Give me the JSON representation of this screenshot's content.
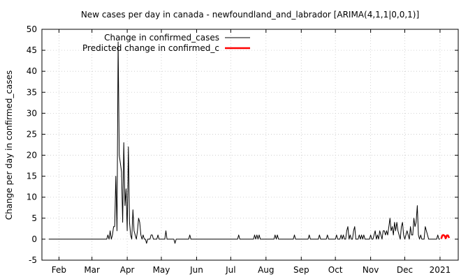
{
  "chart_data": {
    "type": "line",
    "title": "New cases per day in canada - newfoundland_and_labrador [ARIMA(4,1,1|0,0,1)]",
    "xlabel": "",
    "ylabel": "Change per day in confirmed_cases",
    "ylim": [
      -5,
      50
    ],
    "yticks": [
      -5,
      0,
      5,
      10,
      15,
      20,
      25,
      30,
      35,
      40,
      45,
      50
    ],
    "xlim": [
      "2020-01-17",
      "2021-01-17"
    ],
    "xticks": [
      {
        "label": "Feb",
        "date": "2020-02-01"
      },
      {
        "label": "Mar",
        "date": "2020-03-01"
      },
      {
        "label": "Apr",
        "date": "2020-04-01"
      },
      {
        "label": "May",
        "date": "2020-05-01"
      },
      {
        "label": "Jun",
        "date": "2020-06-01"
      },
      {
        "label": "Jul",
        "date": "2020-07-01"
      },
      {
        "label": "Aug",
        "date": "2020-08-01"
      },
      {
        "label": "Sep",
        "date": "2020-09-01"
      },
      {
        "label": "Oct",
        "date": "2020-10-01"
      },
      {
        "label": "Nov",
        "date": "2020-11-01"
      },
      {
        "label": "Dec",
        "date": "2020-12-01"
      },
      {
        "label": "2021",
        "date": "2021-01-01"
      }
    ],
    "grid": true,
    "legend_position": "top-left",
    "series": [
      {
        "name": "Change in confirmed_cases",
        "color": "#000000",
        "points": [
          [
            "2020-01-23",
            0
          ],
          [
            "2020-03-14",
            0
          ],
          [
            "2020-03-15",
            1
          ],
          [
            "2020-03-16",
            0
          ],
          [
            "2020-03-17",
            2
          ],
          [
            "2020-03-18",
            0
          ],
          [
            "2020-03-19",
            1
          ],
          [
            "2020-03-20",
            3
          ],
          [
            "2020-03-21",
            3
          ],
          [
            "2020-03-22",
            15
          ],
          [
            "2020-03-23",
            2
          ],
          [
            "2020-03-24",
            47
          ],
          [
            "2020-03-25",
            20
          ],
          [
            "2020-03-26",
            18
          ],
          [
            "2020-03-27",
            16
          ],
          [
            "2020-03-28",
            4
          ],
          [
            "2020-03-29",
            23
          ],
          [
            "2020-03-30",
            8
          ],
          [
            "2020-03-31",
            12
          ],
          [
            "2020-04-01",
            2
          ],
          [
            "2020-04-02",
            22
          ],
          [
            "2020-04-03",
            4
          ],
          [
            "2020-04-04",
            1
          ],
          [
            "2020-04-05",
            0
          ],
          [
            "2020-04-06",
            7
          ],
          [
            "2020-04-07",
            2
          ],
          [
            "2020-04-08",
            1
          ],
          [
            "2020-04-09",
            0
          ],
          [
            "2020-04-10",
            2
          ],
          [
            "2020-04-11",
            5
          ],
          [
            "2020-04-12",
            4
          ],
          [
            "2020-04-13",
            1
          ],
          [
            "2020-04-14",
            0
          ],
          [
            "2020-04-15",
            1
          ],
          [
            "2020-04-16",
            0
          ],
          [
            "2020-04-17",
            0
          ],
          [
            "2020-04-18",
            -1
          ],
          [
            "2020-04-19",
            0
          ],
          [
            "2020-04-20",
            0
          ],
          [
            "2020-04-21",
            0
          ],
          [
            "2020-04-22",
            1
          ],
          [
            "2020-04-23",
            1
          ],
          [
            "2020-04-24",
            0
          ],
          [
            "2020-04-25",
            0
          ],
          [
            "2020-04-26",
            0
          ],
          [
            "2020-04-27",
            0
          ],
          [
            "2020-04-28",
            1
          ],
          [
            "2020-04-29",
            0
          ],
          [
            "2020-04-30",
            0
          ],
          [
            "2020-05-01",
            0
          ],
          [
            "2020-05-02",
            0
          ],
          [
            "2020-05-03",
            0
          ],
          [
            "2020-05-04",
            0
          ],
          [
            "2020-05-05",
            2
          ],
          [
            "2020-05-06",
            0
          ],
          [
            "2020-05-12",
            0
          ],
          [
            "2020-05-13",
            -1
          ],
          [
            "2020-05-14",
            0
          ],
          [
            "2020-05-25",
            0
          ],
          [
            "2020-05-26",
            1
          ],
          [
            "2020-05-27",
            0
          ],
          [
            "2020-07-07",
            0
          ],
          [
            "2020-07-08",
            1
          ],
          [
            "2020-07-09",
            0
          ],
          [
            "2020-07-21",
            0
          ],
          [
            "2020-07-22",
            1
          ],
          [
            "2020-07-23",
            0
          ],
          [
            "2020-07-24",
            1
          ],
          [
            "2020-07-25",
            0
          ],
          [
            "2020-07-26",
            1
          ],
          [
            "2020-07-27",
            0
          ],
          [
            "2020-08-08",
            0
          ],
          [
            "2020-08-09",
            1
          ],
          [
            "2020-08-10",
            0
          ],
          [
            "2020-08-11",
            1
          ],
          [
            "2020-08-12",
            0
          ],
          [
            "2020-08-25",
            0
          ],
          [
            "2020-08-26",
            1
          ],
          [
            "2020-08-27",
            0
          ],
          [
            "2020-09-07",
            0
          ],
          [
            "2020-09-08",
            1
          ],
          [
            "2020-09-09",
            0
          ],
          [
            "2020-09-16",
            0
          ],
          [
            "2020-09-17",
            1
          ],
          [
            "2020-09-18",
            0
          ],
          [
            "2020-09-23",
            0
          ],
          [
            "2020-09-24",
            1
          ],
          [
            "2020-09-25",
            0
          ],
          [
            "2020-10-01",
            0
          ],
          [
            "2020-10-02",
            1
          ],
          [
            "2020-10-03",
            0
          ],
          [
            "2020-10-05",
            0
          ],
          [
            "2020-10-06",
            1
          ],
          [
            "2020-10-07",
            0
          ],
          [
            "2020-10-08",
            1
          ],
          [
            "2020-10-09",
            0
          ],
          [
            "2020-10-10",
            0
          ],
          [
            "2020-10-11",
            2
          ],
          [
            "2020-10-12",
            3
          ],
          [
            "2020-10-13",
            0
          ],
          [
            "2020-10-14",
            1
          ],
          [
            "2020-10-15",
            0
          ],
          [
            "2020-10-16",
            0
          ],
          [
            "2020-10-17",
            2
          ],
          [
            "2020-10-18",
            3
          ],
          [
            "2020-10-19",
            0
          ],
          [
            "2020-10-20",
            0
          ],
          [
            "2020-10-21",
            0
          ],
          [
            "2020-10-22",
            1
          ],
          [
            "2020-10-23",
            0
          ],
          [
            "2020-10-24",
            1
          ],
          [
            "2020-10-25",
            0
          ],
          [
            "2020-10-26",
            1
          ],
          [
            "2020-10-27",
            0
          ],
          [
            "2020-10-28",
            0
          ],
          [
            "2020-10-29",
            0
          ],
          [
            "2020-10-30",
            0
          ],
          [
            "2020-10-31",
            0
          ],
          [
            "2020-11-01",
            1
          ],
          [
            "2020-11-02",
            0
          ],
          [
            "2020-11-03",
            0
          ],
          [
            "2020-11-04",
            1
          ],
          [
            "2020-11-05",
            2
          ],
          [
            "2020-11-06",
            0
          ],
          [
            "2020-11-07",
            1
          ],
          [
            "2020-11-08",
            0
          ],
          [
            "2020-11-09",
            2
          ],
          [
            "2020-11-10",
            1
          ],
          [
            "2020-11-11",
            0
          ],
          [
            "2020-11-12",
            2
          ],
          [
            "2020-11-13",
            2
          ],
          [
            "2020-11-14",
            1
          ],
          [
            "2020-11-15",
            2
          ],
          [
            "2020-11-16",
            1
          ],
          [
            "2020-11-17",
            3
          ],
          [
            "2020-11-18",
            5
          ],
          [
            "2020-11-19",
            2
          ],
          [
            "2020-11-20",
            3
          ],
          [
            "2020-11-21",
            1
          ],
          [
            "2020-11-22",
            4
          ],
          [
            "2020-11-23",
            2
          ],
          [
            "2020-11-24",
            4
          ],
          [
            "2020-11-25",
            2
          ],
          [
            "2020-11-26",
            1
          ],
          [
            "2020-11-27",
            0
          ],
          [
            "2020-11-28",
            3
          ],
          [
            "2020-11-29",
            4
          ],
          [
            "2020-11-30",
            1
          ],
          [
            "2020-12-01",
            0
          ],
          [
            "2020-12-02",
            1
          ],
          [
            "2020-12-03",
            2
          ],
          [
            "2020-12-04",
            1
          ],
          [
            "2020-12-05",
            0
          ],
          [
            "2020-12-06",
            3
          ],
          [
            "2020-12-07",
            1
          ],
          [
            "2020-12-08",
            1
          ],
          [
            "2020-12-09",
            5
          ],
          [
            "2020-12-10",
            3
          ],
          [
            "2020-12-11",
            4
          ],
          [
            "2020-12-12",
            8
          ],
          [
            "2020-12-13",
            1
          ],
          [
            "2020-12-14",
            0
          ],
          [
            "2020-12-15",
            1
          ],
          [
            "2020-12-16",
            0
          ],
          [
            "2020-12-17",
            0
          ],
          [
            "2020-12-18",
            0
          ],
          [
            "2020-12-19",
            3
          ],
          [
            "2020-12-20",
            2
          ],
          [
            "2020-12-21",
            1
          ],
          [
            "2020-12-22",
            0
          ],
          [
            "2020-12-23",
            0
          ],
          [
            "2020-12-24",
            0
          ],
          [
            "2020-12-25",
            0
          ],
          [
            "2020-12-26",
            0
          ],
          [
            "2020-12-27",
            0
          ],
          [
            "2020-12-28",
            0
          ],
          [
            "2020-12-29",
            0
          ],
          [
            "2020-12-30",
            1
          ],
          [
            "2020-12-31",
            0
          ],
          [
            "2021-01-01",
            0
          ]
        ]
      },
      {
        "name": "Predicted change in confirmed_c",
        "color": "#ff0000",
        "points": [
          [
            "2021-01-02",
            0.1
          ],
          [
            "2021-01-03",
            0.9
          ],
          [
            "2021-01-04",
            1.0
          ],
          [
            "2021-01-05",
            0.8
          ],
          [
            "2021-01-06",
            0.2
          ],
          [
            "2021-01-07",
            0.9
          ],
          [
            "2021-01-08",
            0.9
          ],
          [
            "2021-01-09",
            0.3
          ]
        ]
      }
    ]
  }
}
